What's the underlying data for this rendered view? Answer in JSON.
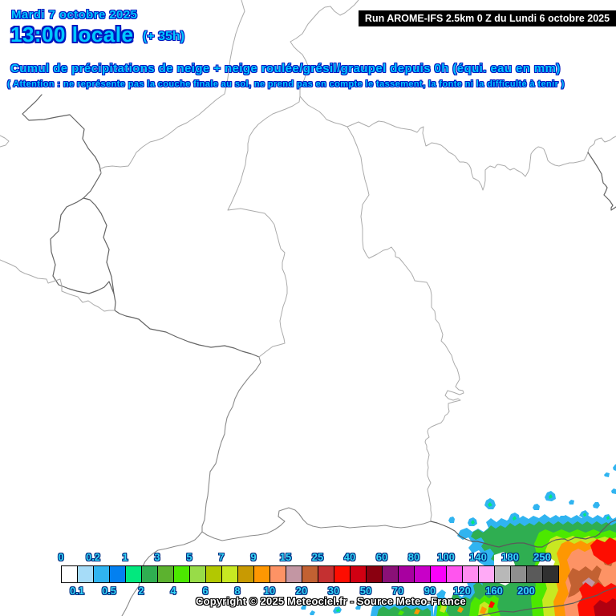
{
  "header": {
    "date_label": "Mardi 7 octobre 2025",
    "time_label": "13:00 locale",
    "offset_label": "(+ 35h)",
    "run_label": "Run AROME-IFS 2.5km 0 Z du Lundi 6 octobre 2025",
    "title": "Cumul de précipitations de neige + neige roulée/grésil/graupel depuis 0h (équi. eau en mm)",
    "warning": "( Attention : ne représente pas la couche finale au sol, ne prend pas en compte le tassement, la fonte ni la difficulté à tenir )",
    "text_color": "#00c8ff",
    "outline_color": "#0018c0"
  },
  "footer": {
    "copyright": "Copyright © 2025 Meteociel.fr - Source Meteo-France"
  },
  "legend": {
    "unit": "équivalent eau en mm",
    "label_color": "#35d6f5",
    "top_labels": [
      {
        "t": "0",
        "i": 0
      },
      {
        "t": "0.2",
        "i": 2
      },
      {
        "t": "1",
        "i": 4
      },
      {
        "t": "3",
        "i": 6
      },
      {
        "t": "5",
        "i": 8
      },
      {
        "t": "7",
        "i": 10
      },
      {
        "t": "9",
        "i": 12
      },
      {
        "t": "15",
        "i": 14
      },
      {
        "t": "25",
        "i": 16
      },
      {
        "t": "40",
        "i": 18
      },
      {
        "t": "60",
        "i": 20
      },
      {
        "t": "80",
        "i": 22
      },
      {
        "t": "100",
        "i": 24
      },
      {
        "t": "140",
        "i": 26
      },
      {
        "t": "180",
        "i": 28
      },
      {
        "t": "250",
        "i": 30
      }
    ],
    "bottom_labels": [
      {
        "t": "0.1",
        "i": 1
      },
      {
        "t": "0.5",
        "i": 3
      },
      {
        "t": "2",
        "i": 5
      },
      {
        "t": "4",
        "i": 7
      },
      {
        "t": "6",
        "i": 9
      },
      {
        "t": "8",
        "i": 11
      },
      {
        "t": "10",
        "i": 13
      },
      {
        "t": "20",
        "i": 15
      },
      {
        "t": "30",
        "i": 17
      },
      {
        "t": "50",
        "i": 19
      },
      {
        "t": "70",
        "i": 21
      },
      {
        "t": "90",
        "i": 23
      },
      {
        "t": "120",
        "i": 25
      },
      {
        "t": "160",
        "i": 27
      },
      {
        "t": "200",
        "i": 29
      }
    ],
    "cells": [
      {
        "range": "0–0.1",
        "color": "#FFFFFF"
      },
      {
        "range": "0.1–0.2",
        "color": "#A6DCF8"
      },
      {
        "range": "0.2–0.5",
        "color": "#30B4F0"
      },
      {
        "range": "0.5–1",
        "color": "#0380F0"
      },
      {
        "range": "1–2",
        "color": "#02E87E"
      },
      {
        "range": "2–3",
        "color": "#2FAE51"
      },
      {
        "range": "3–4",
        "color": "#5CB22F"
      },
      {
        "range": "4–5",
        "color": "#4CE800"
      },
      {
        "range": "5–6",
        "color": "#98DC48"
      },
      {
        "range": "6–7",
        "color": "#B2C801"
      },
      {
        "range": "7–8",
        "color": "#C8E822"
      },
      {
        "range": "8–9",
        "color": "#C89A02"
      },
      {
        "range": "9–10",
        "color": "#FE9702"
      },
      {
        "range": "10–15",
        "color": "#FD9365"
      },
      {
        "range": "15–20",
        "color": "#C396A3"
      },
      {
        "range": "20–25",
        "color": "#C26132"
      },
      {
        "range": "25–30",
        "color": "#C43031"
      },
      {
        "range": "30–40",
        "color": "#FD0D01"
      },
      {
        "range": "40–50",
        "color": "#D00012"
      },
      {
        "range": "50–60",
        "color": "#8A0010"
      },
      {
        "range": "60–70",
        "color": "#8A1077"
      },
      {
        "range": "70–80",
        "color": "#A800A0"
      },
      {
        "range": "80–90",
        "color": "#C800C8"
      },
      {
        "range": "90–100",
        "color": "#FA00FA"
      },
      {
        "range": "100–120",
        "color": "#FF55EE"
      },
      {
        "range": "120–140",
        "color": "#FF8CF0"
      },
      {
        "range": "140–160",
        "color": "#FFAAF6"
      },
      {
        "range": "160–180",
        "color": "#B8B8B8"
      },
      {
        "range": "180–200",
        "color": "#8E8E8E"
      },
      {
        "range": "200–250",
        "color": "#5A5A5A"
      },
      {
        "range": "> 250",
        "color": "#303030"
      }
    ]
  },
  "map": {
    "background": "#ffffff",
    "border_light": "#ababab",
    "border_dark": "#646464",
    "precip_palette": [
      "#30B4F0",
      "#02E87E",
      "#2FAE51",
      "#4CE800",
      "#C8E822",
      "#FE9702",
      "#FD9365",
      "#C26132",
      "#C396A3",
      "#FD0D01",
      "#B00010"
    ]
  }
}
